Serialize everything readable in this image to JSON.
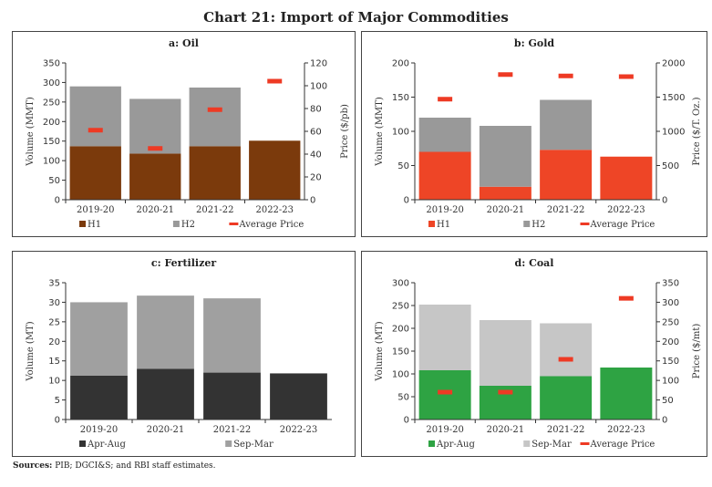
{
  "title": "Chart 21: Import of Major Commodities",
  "sources_label": "Sources:",
  "sources_text": " PIB; DGCI&S; and RBI staff estimates.",
  "chart_data": [
    {
      "type": "bar",
      "stacked": true,
      "title": "a: Oil",
      "ylabel": "Volume (MMT)",
      "y2label": "Price ($/pb)",
      "categories": [
        "2019-20",
        "2020-21",
        "2021-22",
        "2022-23"
      ],
      "ylim": [
        0,
        350
      ],
      "yticks": [
        0,
        50,
        100,
        150,
        200,
        250,
        300,
        350
      ],
      "y2lim": [
        0,
        120
      ],
      "y2ticks": [
        0,
        20,
        40,
        60,
        80,
        100,
        120
      ],
      "series": [
        {
          "name": "H1",
          "values": [
            137,
            118,
            137,
            151
          ],
          "color": "#7b3a0c"
        },
        {
          "name": "H2",
          "values": [
            153,
            140,
            150,
            0
          ],
          "color": "#999999"
        }
      ],
      "line_series": {
        "name": "Average Price",
        "values": [
          61,
          45,
          79,
          104
        ],
        "color": "#ee3a24"
      }
    },
    {
      "type": "bar",
      "stacked": true,
      "title": "b: Gold",
      "ylabel": "Volume (MMT)",
      "y2label": "Price  ($/T. Oz.)",
      "categories": [
        "2019-20",
        "2020-21",
        "2021-22",
        "2022-23"
      ],
      "ylim": [
        0,
        200
      ],
      "yticks": [
        0,
        50,
        100,
        150,
        200
      ],
      "y2lim": [
        0,
        2000
      ],
      "y2ticks": [
        0,
        500,
        1000,
        1500,
        2000
      ],
      "series": [
        {
          "name": "H1",
          "values": [
            70,
            19,
            73,
            63
          ],
          "color": "#ee4526"
        },
        {
          "name": "H2",
          "values": [
            50,
            89,
            73,
            0
          ],
          "color": "#999999"
        }
      ],
      "line_series": {
        "name": "Average Price",
        "values": [
          1470,
          1830,
          1810,
          1800
        ],
        "color": "#ee3a24"
      }
    },
    {
      "type": "bar",
      "stacked": true,
      "title": "c: Fertilizer",
      "ylabel": "Volume (MT)",
      "categories": [
        "2019-20",
        "2020-21",
        "2021-22",
        "2022-23"
      ],
      "ylim": [
        0,
        35
      ],
      "yticks": [
        0,
        5,
        10,
        15,
        20,
        25,
        30,
        35
      ],
      "series": [
        {
          "name": "Apr-Aug",
          "values": [
            11.2,
            13,
            12,
            11.8
          ],
          "color": "#333333"
        },
        {
          "name": "Sep-Mar",
          "values": [
            18.8,
            18.7,
            19,
            0
          ],
          "color": "#a0a0a0"
        }
      ]
    },
    {
      "type": "bar",
      "stacked": true,
      "title": "d: Coal",
      "ylabel": "Volume (MT)",
      "y2label": "Price ($/mt)",
      "categories": [
        "2019-20",
        "2020-21",
        "2021-22",
        "2022-23"
      ],
      "ylim": [
        0,
        300
      ],
      "yticks": [
        0,
        50,
        100,
        150,
        200,
        250,
        300
      ],
      "y2lim": [
        0,
        350
      ],
      "y2ticks": [
        0,
        50,
        100,
        150,
        200,
        250,
        300,
        350
      ],
      "series": [
        {
          "name": "Apr-Aug",
          "values": [
            108,
            74,
            95,
            114
          ],
          "color": "#2ea343"
        },
        {
          "name": "Sep-Mar",
          "values": [
            144,
            144,
            116,
            0
          ],
          "color": "#c6c6c6"
        }
      ],
      "line_series": {
        "name": "Average Price",
        "values": [
          70,
          70,
          154,
          310
        ],
        "color": "#ee3a24"
      }
    }
  ]
}
